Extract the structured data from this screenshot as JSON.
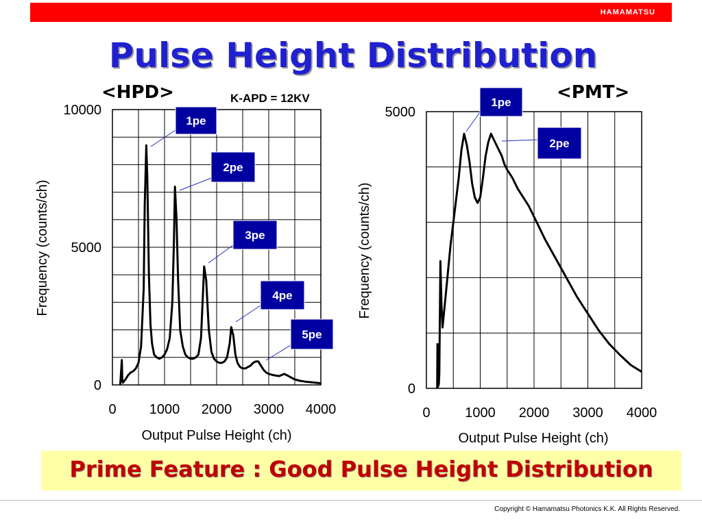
{
  "header": {
    "brand": "HAMAMATSU",
    "title": "Pulse Height Distribution"
  },
  "banner": {
    "text": "Prime Feature : Good Pulse Height Distribution"
  },
  "footer": {
    "copyright": "Copyright © Hamamatsu Photonics K.K.   All Rights Reserved."
  },
  "colors": {
    "brand_red": "#ff0000",
    "title_blue": "#2020d0",
    "label_box": "#0000a0",
    "banner_bg": "#ffffa6",
    "banner_text": "#c00000"
  },
  "chart_data": [
    {
      "type": "line",
      "title": "<HPD>",
      "annotation": "K-APD = 12KV",
      "xlabel": "Output Pulse Height (ch)",
      "ylabel": "Frequency (counts/ch)",
      "xlim": [
        0,
        4000
      ],
      "ylim": [
        0,
        10000
      ],
      "xticks": [
        "0",
        "1000",
        "2000",
        "3000",
        "4000"
      ],
      "yticks": [
        "0",
        "5000",
        "10000"
      ],
      "grid": true,
      "series": [
        {
          "x": [
            150,
            180,
            190,
            200,
            250,
            300,
            350,
            400,
            450,
            500,
            550,
            600,
            620,
            650,
            670,
            700,
            730,
            760,
            800,
            850,
            900,
            950,
            1000,
            1050,
            1100,
            1150,
            1180,
            1200,
            1230,
            1260,
            1300,
            1350,
            1400,
            1450,
            1500,
            1550,
            1600,
            1650,
            1700,
            1730,
            1760,
            1800,
            1850,
            1900,
            1950,
            2000,
            2050,
            2100,
            2150,
            2200,
            2250,
            2280,
            2320,
            2360,
            2400,
            2450,
            2500,
            2550,
            2600,
            2650,
            2700,
            2750,
            2800,
            2850,
            2900,
            2950,
            3000,
            3100,
            3200,
            3300,
            3400,
            3450,
            3500,
            3600,
            3700,
            3800,
            3900,
            4000
          ],
          "y": [
            0,
            900,
            200,
            80,
            200,
            350,
            450,
            500,
            600,
            800,
            1400,
            3500,
            6500,
            8700,
            7500,
            4000,
            2200,
            1500,
            1100,
            1000,
            950,
            1000,
            1100,
            1300,
            1700,
            3000,
            5200,
            7200,
            6000,
            3800,
            2000,
            1400,
            1100,
            1000,
            950,
            950,
            1000,
            1100,
            1700,
            3000,
            4300,
            3800,
            2000,
            1200,
            950,
            850,
            800,
            800,
            850,
            1000,
            1500,
            2100,
            1800,
            1100,
            800,
            650,
            600,
            600,
            650,
            700,
            800,
            850,
            850,
            700,
            550,
            450,
            400,
            350,
            320,
            400,
            300,
            250,
            200,
            150,
            120,
            100,
            80,
            60
          ]
        }
      ],
      "labels": [
        {
          "text": "1pe",
          "x": 660,
          "y": 8600
        },
        {
          "text": "2pe",
          "x": 1250,
          "y": 7100
        },
        {
          "text": "3pe",
          "x": 1760,
          "y": 4400
        },
        {
          "text": "4pe",
          "x": 2280,
          "y": 2200
        },
        {
          "text": "5pe",
          "x": 2800,
          "y": 850
        }
      ]
    },
    {
      "type": "line",
      "title": "<PMT>",
      "xlabel": "Output Pulse Height (ch)",
      "ylabel": "Frequency (counts/ch)",
      "xlim": [
        0,
        4000
      ],
      "ylim": [
        0,
        5000
      ],
      "xticks": [
        "0",
        "1000",
        "2000",
        "3000",
        "4000"
      ],
      "yticks": [
        "0",
        "5000"
      ],
      "grid": true,
      "series": [
        {
          "x": [
            200,
            205,
            215,
            230,
            240,
            260,
            280,
            300,
            350,
            400,
            450,
            500,
            550,
            600,
            650,
            700,
            750,
            800,
            850,
            900,
            950,
            1000,
            1050,
            1100,
            1150,
            1200,
            1250,
            1300,
            1350,
            1400,
            1450,
            1500,
            1600,
            1700,
            1800,
            1900,
            2000,
            2100,
            2200,
            2400,
            2600,
            2800,
            3000,
            3200,
            3400,
            3600,
            3800,
            4000
          ],
          "y": [
            0,
            800,
            30,
            80,
            250,
            2300,
            1500,
            1100,
            1600,
            2100,
            2600,
            3000,
            3400,
            3800,
            4300,
            4600,
            4400,
            4100,
            3700,
            3450,
            3350,
            3450,
            3800,
            4200,
            4450,
            4600,
            4500,
            4400,
            4300,
            4200,
            4050,
            3950,
            3800,
            3600,
            3450,
            3300,
            3100,
            2900,
            2700,
            2350,
            2000,
            1650,
            1350,
            1050,
            800,
            600,
            420,
            300
          ]
        }
      ],
      "labels": [
        {
          "text": "1pe",
          "x": 700,
          "y": 4600
        },
        {
          "text": "2pe",
          "x": 1300,
          "y": 4300
        }
      ]
    }
  ]
}
